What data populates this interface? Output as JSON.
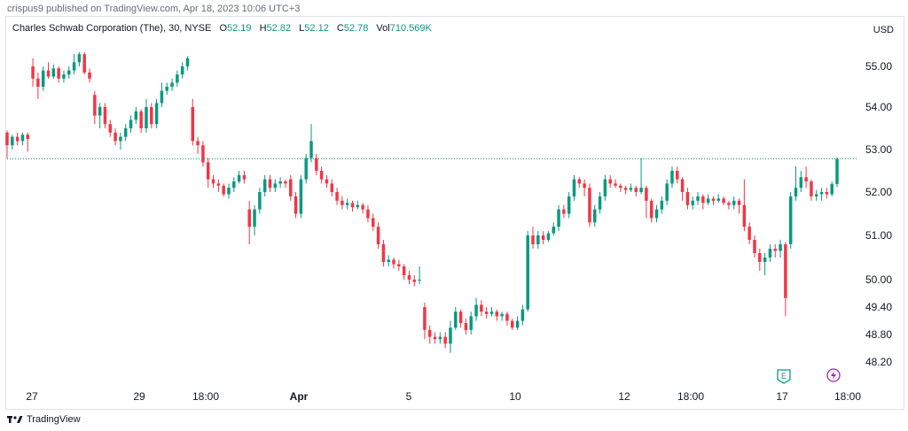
{
  "header": {
    "published": "crispus9 published on TradingView.com, Apr 18, 2023 10:06 UTC+3",
    "currency": "USD"
  },
  "legend": {
    "symbol": "Charles Schwab Corporation (The), 30, NYSE",
    "open_label": "O",
    "open_value": "52.19",
    "high_label": "H",
    "high_value": "52.82",
    "low_label": "L",
    "low_value": "52.12",
    "close_label": "C",
    "close_value": "52.78",
    "vol_label": "Vol",
    "vol_value": "710.569K"
  },
  "footer": {
    "brand": "TradingView"
  },
  "markers": {
    "earnings": "E"
  },
  "colors": {
    "up": "#089981",
    "down": "#f23645",
    "last_price_line": "#089981",
    "grid": "#e0e3eb"
  },
  "chart_data": {
    "type": "candlestick",
    "y_ticks": [
      "55.00",
      "54.00",
      "53.00",
      "52.00",
      "51.00",
      "50.00",
      "49.40",
      "48.80",
      "48.20"
    ],
    "x_ticks": [
      {
        "label": "27",
        "bold": false
      },
      {
        "label": "29",
        "bold": false
      },
      {
        "label": "18:00",
        "bold": false
      },
      {
        "label": "Apr",
        "bold": true
      },
      {
        "label": "5",
        "bold": false
      },
      {
        "label": "10",
        "bold": false
      },
      {
        "label": "12",
        "bold": false
      },
      {
        "label": "18:00",
        "bold": false
      },
      {
        "label": "17",
        "bold": false
      },
      {
        "label": "18:00",
        "bold": false
      }
    ],
    "last_price": 52.78,
    "candles": [
      [
        53.4,
        53.1,
        53.45,
        52.8
      ],
      [
        53.1,
        53.3,
        53.35,
        53.0
      ],
      [
        53.3,
        53.2,
        53.4,
        53.1
      ],
      [
        53.2,
        53.35,
        53.4,
        53.1
      ],
      [
        53.35,
        53.25,
        53.4,
        52.95
      ],
      [
        55.0,
        54.7,
        55.2,
        54.5
      ],
      [
        54.7,
        54.5,
        54.85,
        54.2
      ],
      [
        54.5,
        54.9,
        55.0,
        54.4
      ],
      [
        54.9,
        54.75,
        55.1,
        54.7
      ],
      [
        54.75,
        54.95,
        55.05,
        54.7
      ],
      [
        54.95,
        54.7,
        55.0,
        54.6
      ],
      [
        54.7,
        54.8,
        54.9,
        54.6
      ],
      [
        54.8,
        54.9,
        55.0,
        54.7
      ],
      [
        54.9,
        55.1,
        55.3,
        54.8
      ],
      [
        55.1,
        55.3,
        55.35,
        55.0
      ],
      [
        55.3,
        54.85,
        55.35,
        54.8
      ],
      [
        54.85,
        54.7,
        54.95,
        54.6
      ],
      [
        54.3,
        53.8,
        54.4,
        53.6
      ],
      [
        53.8,
        54.0,
        54.1,
        53.5
      ],
      [
        54.0,
        53.6,
        54.1,
        53.5
      ],
      [
        53.6,
        53.4,
        53.7,
        53.3
      ],
      [
        53.4,
        53.2,
        53.5,
        53.1
      ],
      [
        53.2,
        53.3,
        53.4,
        53.0
      ],
      [
        53.3,
        53.5,
        53.6,
        53.2
      ],
      [
        53.5,
        53.7,
        53.8,
        53.4
      ],
      [
        53.7,
        53.9,
        54.0,
        53.6
      ],
      [
        53.9,
        53.5,
        53.95,
        53.4
      ],
      [
        53.5,
        54.0,
        54.2,
        53.4
      ],
      [
        54.0,
        53.6,
        54.1,
        53.5
      ],
      [
        53.6,
        54.1,
        54.2,
        53.5
      ],
      [
        54.1,
        54.4,
        54.6,
        54.0
      ],
      [
        54.4,
        54.5,
        54.6,
        54.3
      ],
      [
        54.5,
        54.6,
        54.7,
        54.4
      ],
      [
        54.6,
        54.8,
        54.9,
        54.5
      ],
      [
        54.8,
        55.0,
        55.1,
        54.7
      ],
      [
        55.0,
        55.2,
        55.25,
        54.9
      ],
      [
        54.0,
        53.2,
        54.2,
        53.1
      ],
      [
        53.2,
        53.1,
        53.3,
        52.9
      ],
      [
        53.1,
        52.7,
        53.2,
        52.6
      ],
      [
        52.7,
        52.3,
        52.8,
        52.1
      ],
      [
        52.3,
        52.2,
        52.4,
        52.1
      ],
      [
        52.2,
        52.15,
        52.3,
        52.0
      ],
      [
        52.15,
        51.95,
        52.2,
        51.9
      ],
      [
        51.95,
        52.1,
        52.2,
        51.85
      ],
      [
        52.1,
        52.25,
        52.35,
        52.0
      ],
      [
        52.25,
        52.4,
        52.5,
        52.2
      ],
      [
        52.4,
        52.3,
        52.5,
        52.2
      ],
      [
        51.6,
        51.2,
        51.8,
        50.8
      ],
      [
        51.2,
        51.6,
        51.7,
        51.0
      ],
      [
        51.6,
        52.0,
        52.1,
        51.5
      ],
      [
        52.0,
        52.3,
        52.4,
        51.9
      ],
      [
        52.3,
        52.1,
        52.4,
        52.0
      ],
      [
        52.1,
        52.2,
        52.3,
        52.0
      ],
      [
        52.2,
        52.25,
        52.35,
        52.1
      ],
      [
        52.25,
        52.2,
        52.3,
        52.1
      ],
      [
        52.3,
        51.9,
        52.4,
        51.8
      ],
      [
        51.9,
        51.5,
        52.0,
        51.4
      ],
      [
        51.5,
        52.3,
        52.4,
        51.4
      ],
      [
        52.3,
        52.8,
        52.9,
        52.2
      ],
      [
        52.8,
        53.2,
        53.6,
        52.7
      ],
      [
        52.8,
        52.5,
        52.9,
        52.4
      ],
      [
        52.5,
        52.3,
        52.6,
        52.2
      ],
      [
        52.3,
        52.2,
        52.4,
        52.1
      ],
      [
        52.2,
        52.0,
        52.3,
        51.9
      ],
      [
        52.0,
        51.8,
        52.1,
        51.7
      ],
      [
        51.8,
        51.7,
        51.9,
        51.6
      ],
      [
        51.7,
        51.75,
        51.85,
        51.6
      ],
      [
        51.75,
        51.65,
        51.8,
        51.55
      ],
      [
        51.65,
        51.7,
        51.8,
        51.6
      ],
      [
        51.7,
        51.6,
        51.75,
        51.5
      ],
      [
        51.6,
        51.4,
        51.7,
        51.3
      ],
      [
        51.4,
        51.2,
        51.5,
        51.1
      ],
      [
        51.2,
        50.8,
        51.3,
        50.7
      ],
      [
        50.8,
        50.4,
        50.9,
        50.3
      ],
      [
        50.4,
        50.45,
        50.55,
        50.3
      ],
      [
        50.45,
        50.35,
        50.5,
        50.25
      ],
      [
        50.35,
        50.3,
        50.45,
        50.2
      ],
      [
        50.3,
        50.1,
        50.35,
        50.0
      ],
      [
        50.1,
        50.0,
        50.2,
        49.9
      ],
      [
        50.0,
        49.95,
        50.1,
        49.85
      ],
      [
        50.0,
        50.0,
        50.3,
        49.9
      ],
      [
        49.4,
        48.9,
        49.5,
        48.7
      ],
      [
        48.9,
        48.75,
        49.0,
        48.6
      ],
      [
        48.75,
        48.7,
        48.85,
        48.6
      ],
      [
        48.7,
        48.75,
        48.85,
        48.6
      ],
      [
        48.75,
        48.6,
        48.85,
        48.5
      ],
      [
        48.6,
        48.95,
        49.1,
        48.4
      ],
      [
        48.95,
        49.3,
        49.4,
        48.9
      ],
      [
        49.3,
        49.05,
        49.35,
        48.95
      ],
      [
        49.05,
        48.9,
        49.15,
        48.8
      ],
      [
        48.9,
        49.2,
        49.3,
        48.8
      ],
      [
        49.2,
        49.45,
        49.6,
        49.1
      ],
      [
        49.45,
        49.3,
        49.55,
        49.2
      ],
      [
        49.3,
        49.25,
        49.4,
        49.15
      ],
      [
        49.25,
        49.3,
        49.4,
        49.2
      ],
      [
        49.3,
        49.2,
        49.35,
        49.1
      ],
      [
        49.2,
        49.25,
        49.3,
        49.1
      ],
      [
        49.25,
        49.1,
        49.3,
        49.0
      ],
      [
        49.1,
        48.95,
        49.15,
        48.9
      ],
      [
        48.95,
        49.1,
        49.2,
        48.9
      ],
      [
        49.1,
        49.35,
        49.45,
        49.0
      ],
      [
        49.35,
        51.0,
        51.1,
        49.3
      ],
      [
        51.0,
        50.8,
        51.2,
        50.7
      ],
      [
        50.8,
        51.0,
        51.1,
        50.7
      ],
      [
        51.0,
        50.9,
        51.1,
        50.8
      ],
      [
        50.9,
        51.05,
        51.1,
        50.85
      ],
      [
        51.05,
        51.2,
        51.3,
        51.0
      ],
      [
        51.2,
        51.6,
        51.7,
        51.1
      ],
      [
        51.6,
        51.5,
        51.7,
        51.4
      ],
      [
        51.5,
        51.9,
        52.0,
        51.4
      ],
      [
        51.9,
        52.3,
        52.4,
        51.8
      ],
      [
        52.3,
        52.2,
        52.35,
        52.1
      ],
      [
        52.2,
        52.1,
        52.3,
        51.9
      ],
      [
        52.1,
        51.3,
        52.2,
        51.2
      ],
      [
        51.3,
        51.6,
        51.7,
        51.2
      ],
      [
        51.6,
        51.9,
        52.0,
        51.5
      ],
      [
        51.9,
        52.3,
        52.4,
        51.8
      ],
      [
        52.3,
        52.2,
        52.4,
        52.1
      ],
      [
        52.2,
        52.15,
        52.3,
        52.1
      ],
      [
        52.15,
        52.1,
        52.2,
        52.0
      ],
      [
        52.1,
        52.05,
        52.15,
        51.95
      ],
      [
        52.05,
        52.1,
        52.2,
        52.0
      ],
      [
        52.1,
        52.0,
        52.15,
        51.9
      ],
      [
        52.0,
        52.1,
        52.8,
        51.95
      ],
      [
        52.1,
        51.8,
        52.15,
        51.4
      ],
      [
        51.8,
        51.4,
        51.85,
        51.3
      ],
      [
        51.4,
        51.6,
        51.7,
        51.3
      ],
      [
        51.6,
        51.8,
        51.9,
        51.5
      ],
      [
        51.8,
        52.2,
        52.3,
        51.7
      ],
      [
        52.2,
        52.5,
        52.6,
        52.1
      ],
      [
        52.5,
        52.3,
        52.6,
        52.2
      ],
      [
        52.3,
        52.0,
        52.35,
        51.8
      ],
      [
        52.0,
        51.7,
        52.1,
        51.6
      ],
      [
        51.7,
        51.8,
        51.9,
        51.6
      ],
      [
        51.8,
        51.9,
        52.0,
        51.7
      ],
      [
        51.9,
        51.75,
        51.95,
        51.6
      ],
      [
        51.75,
        51.85,
        51.95,
        51.7
      ],
      [
        51.85,
        51.8,
        51.9,
        51.7
      ],
      [
        51.8,
        51.85,
        51.95,
        51.75
      ],
      [
        51.85,
        51.75,
        51.9,
        51.7
      ],
      [
        51.75,
        51.7,
        51.8,
        51.6
      ],
      [
        51.7,
        51.8,
        51.9,
        51.6
      ],
      [
        51.8,
        51.7,
        51.85,
        51.5
      ],
      [
        51.7,
        51.2,
        52.3,
        51.1
      ],
      [
        51.2,
        50.9,
        51.3,
        50.8
      ],
      [
        50.9,
        50.6,
        51.0,
        50.5
      ],
      [
        50.6,
        50.4,
        50.7,
        50.2
      ],
      [
        50.4,
        50.5,
        50.6,
        50.1
      ],
      [
        50.5,
        50.7,
        50.8,
        50.4
      ],
      [
        50.7,
        50.65,
        50.8,
        50.5
      ],
      [
        50.65,
        50.8,
        50.9,
        50.5
      ],
      [
        50.8,
        49.6,
        50.85,
        49.2
      ],
      [
        50.8,
        51.9,
        52.0,
        50.7
      ],
      [
        51.9,
        52.1,
        52.6,
        51.8
      ],
      [
        52.1,
        52.35,
        52.5,
        52.0
      ],
      [
        52.35,
        52.25,
        52.6,
        52.1
      ],
      [
        52.25,
        51.9,
        52.3,
        51.8
      ],
      [
        51.9,
        51.95,
        52.05,
        51.8
      ],
      [
        51.95,
        52.0,
        52.1,
        51.8
      ],
      [
        52.0,
        51.95,
        52.1,
        51.85
      ],
      [
        51.95,
        52.19,
        52.25,
        51.9
      ],
      [
        52.19,
        52.78,
        52.82,
        52.12
      ]
    ]
  }
}
